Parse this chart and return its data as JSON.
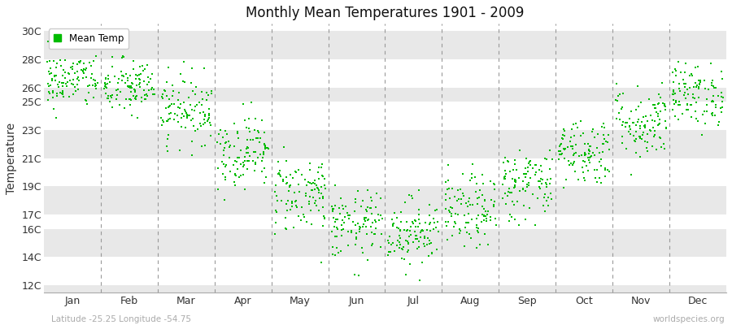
{
  "title": "Monthly Mean Temperatures 1901 - 2009",
  "ylabel": "Temperature",
  "bottom_left": "Latitude -25.25 Longitude -54.75",
  "bottom_right": "worldspecies.org",
  "dot_color": "#00bb00",
  "dot_size": 3,
  "bg_color_light": "#ffffff",
  "bg_color_dark": "#e8e8e8",
  "ytick_labels": [
    "12C",
    "14C",
    "16C",
    "17C",
    "19C",
    "21C",
    "23C",
    "25C",
    "26C",
    "28C",
    "30C"
  ],
  "ytick_values": [
    12,
    14,
    16,
    17,
    19,
    21,
    23,
    25,
    26,
    28,
    30
  ],
  "ylim": [
    11.5,
    30.5
  ],
  "months": [
    "Jan",
    "Feb",
    "Mar",
    "Apr",
    "May",
    "Jun",
    "Jul",
    "Aug",
    "Sep",
    "Oct",
    "Nov",
    "Dec"
  ],
  "monthly_mean": [
    26.5,
    26.0,
    24.5,
    21.5,
    18.5,
    16.2,
    15.8,
    17.2,
    19.2,
    21.5,
    23.5,
    25.5
  ],
  "monthly_std": [
    1.0,
    1.0,
    1.2,
    1.3,
    1.4,
    1.2,
    1.2,
    1.3,
    1.3,
    1.2,
    1.3,
    1.1
  ],
  "n_years": 109,
  "seed": 42,
  "legend_label": "Mean Temp",
  "figwidth": 9.0,
  "figheight": 4.0,
  "dpi": 100
}
